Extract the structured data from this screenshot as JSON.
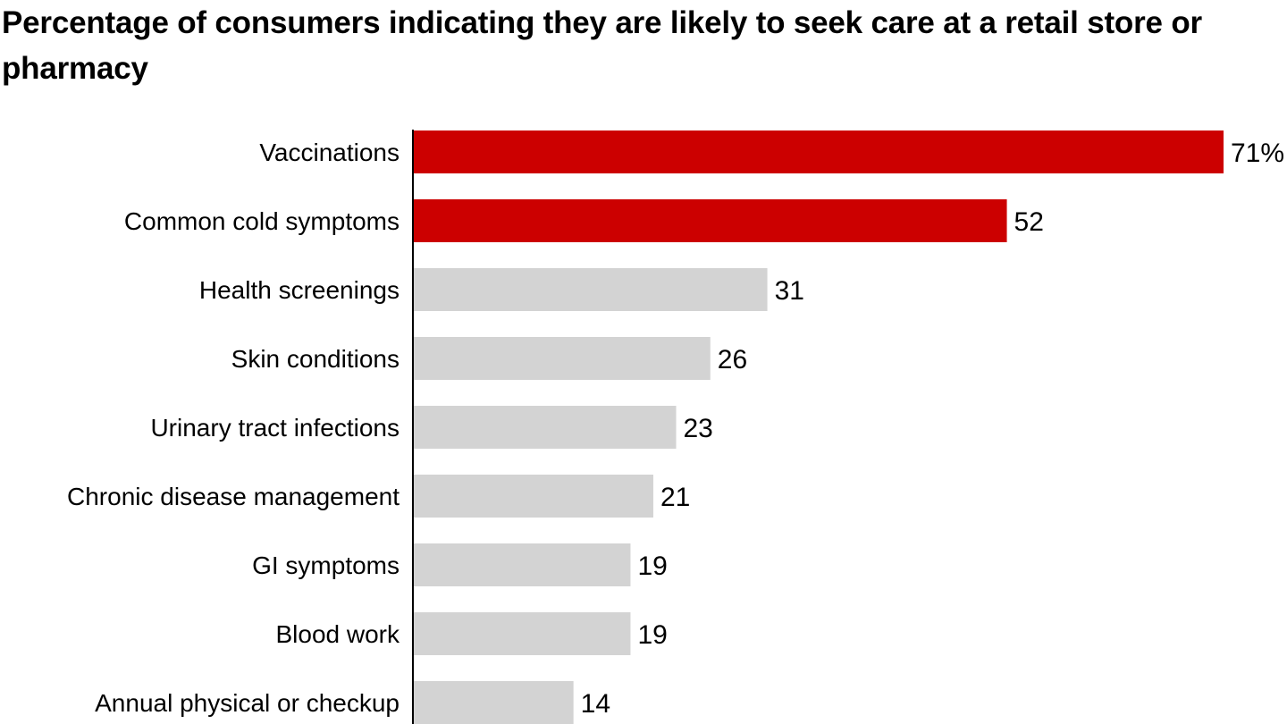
{
  "chart_data": {
    "type": "bar",
    "orientation": "horizontal",
    "title": "Percentage of consumers indicating they are likely to seek care at a retail store or pharmacy",
    "xlabel": "",
    "ylabel": "",
    "xlim": [
      0,
      71
    ],
    "grid": false,
    "categories": [
      "Vaccinations",
      "Common cold symptoms",
      "Health screenings",
      "Skin conditions",
      "Urinary tract infections",
      "Chronic disease management",
      "GI symptoms",
      "Blood work",
      "Annual physical or checkup"
    ],
    "values": [
      71,
      52,
      31,
      26,
      23,
      21,
      19,
      19,
      14
    ],
    "value_labels": [
      "71%",
      "52",
      "31",
      "26",
      "23",
      "21",
      "19",
      "19",
      "14"
    ],
    "highlighted": [
      true,
      true,
      false,
      false,
      false,
      false,
      false,
      false,
      false
    ],
    "colors": {
      "highlight": "#cc0000",
      "default": "#d3d3d3",
      "axis": "#000000"
    }
  }
}
